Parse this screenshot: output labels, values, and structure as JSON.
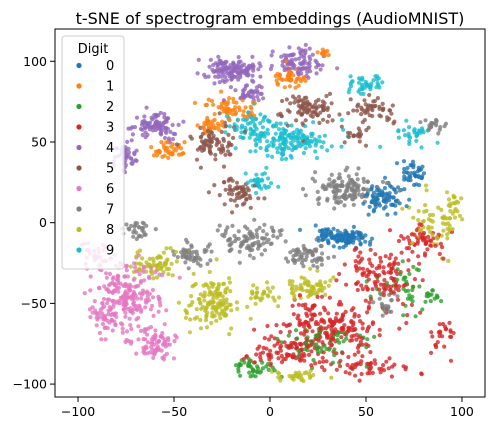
{
  "chart_data": {
    "type": "scatter",
    "title": "t-SNE of spectrogram embeddings (AudioMNIST)",
    "xlabel": "",
    "ylabel": "",
    "xlim": [
      -112,
      112
    ],
    "ylim": [
      -108,
      120
    ],
    "xticks": [
      -100,
      -50,
      0,
      50,
      100
    ],
    "yticks": [
      -100,
      -50,
      0,
      50,
      100
    ],
    "grid": false,
    "legend": {
      "title": "Digit",
      "placement": "top-left"
    },
    "series": [
      {
        "name": "0",
        "color": "#1f77b4",
        "clusters": [
          [
            40,
            -10,
            10,
            5,
            90
          ],
          [
            60,
            15,
            8,
            8,
            80
          ],
          [
            75,
            30,
            5,
            6,
            40
          ],
          [
            30,
            -8,
            6,
            4,
            30
          ]
        ]
      },
      {
        "name": "1",
        "color": "#ff7f0e",
        "clusters": [
          [
            -20,
            70,
            10,
            6,
            60
          ],
          [
            -55,
            45,
            8,
            4,
            40
          ],
          [
            10,
            90,
            8,
            5,
            40
          ],
          [
            -30,
            60,
            5,
            5,
            30
          ],
          [
            28,
            105,
            3,
            2,
            10
          ]
        ]
      },
      {
        "name": "2",
        "color": "#2ca02c",
        "clusters": [
          [
            30,
            -75,
            20,
            10,
            60
          ],
          [
            -10,
            -90,
            10,
            5,
            40
          ],
          [
            70,
            -40,
            15,
            15,
            40
          ],
          [
            85,
            -45,
            4,
            4,
            12
          ]
        ]
      },
      {
        "name": "3",
        "color": "#d62728",
        "clusters": [
          [
            30,
            -65,
            22,
            14,
            220
          ],
          [
            10,
            -80,
            15,
            8,
            90
          ],
          [
            60,
            -30,
            15,
            15,
            120
          ],
          [
            80,
            -10,
            8,
            8,
            50
          ],
          [
            90,
            -70,
            5,
            12,
            25
          ],
          [
            50,
            -90,
            20,
            5,
            50
          ]
        ]
      },
      {
        "name": "4",
        "color": "#9467bd",
        "clusters": [
          [
            -20,
            95,
            12,
            6,
            130
          ],
          [
            15,
            100,
            10,
            8,
            90
          ],
          [
            -60,
            60,
            10,
            8,
            90
          ],
          [
            -75,
            40,
            5,
            8,
            40
          ],
          [
            -10,
            80,
            8,
            6,
            40
          ]
        ]
      },
      {
        "name": "5",
        "color": "#8c564b",
        "clusters": [
          [
            -30,
            50,
            10,
            10,
            80
          ],
          [
            20,
            70,
            12,
            8,
            90
          ],
          [
            -15,
            20,
            10,
            8,
            60
          ],
          [
            55,
            70,
            8,
            6,
            50
          ],
          [
            45,
            55,
            6,
            5,
            20
          ]
        ]
      },
      {
        "name": "6",
        "color": "#e377c2",
        "clusters": [
          [
            -75,
            -45,
            14,
            18,
            220
          ],
          [
            -60,
            -75,
            10,
            8,
            70
          ],
          [
            -90,
            -20,
            6,
            8,
            30
          ],
          [
            -85,
            -60,
            6,
            8,
            30
          ]
        ]
      },
      {
        "name": "7",
        "color": "#7f7f7f",
        "clusters": [
          [
            40,
            20,
            15,
            8,
            130
          ],
          [
            -10,
            -10,
            15,
            8,
            90
          ],
          [
            -40,
            -20,
            8,
            6,
            50
          ],
          [
            20,
            -20,
            10,
            6,
            60
          ],
          [
            -70,
            -5,
            6,
            5,
            30
          ],
          [
            60,
            -50,
            6,
            6,
            20
          ],
          [
            85,
            60,
            5,
            4,
            20
          ]
        ]
      },
      {
        "name": "8",
        "color": "#bcbd22",
        "clusters": [
          [
            -30,
            -50,
            12,
            12,
            130
          ],
          [
            -60,
            -25,
            10,
            6,
            60
          ],
          [
            85,
            0,
            10,
            15,
            60
          ],
          [
            20,
            -40,
            10,
            6,
            60
          ],
          [
            15,
            -95,
            10,
            4,
            30
          ],
          [
            -5,
            -45,
            6,
            6,
            30
          ],
          [
            95,
            10,
            4,
            8,
            20
          ]
        ]
      },
      {
        "name": "9",
        "color": "#17becf",
        "clusters": [
          [
            10,
            50,
            20,
            8,
            150
          ],
          [
            -10,
            60,
            10,
            8,
            60
          ],
          [
            50,
            85,
            8,
            6,
            40
          ],
          [
            75,
            55,
            6,
            5,
            30
          ],
          [
            -5,
            25,
            6,
            5,
            30
          ]
        ]
      }
    ]
  }
}
